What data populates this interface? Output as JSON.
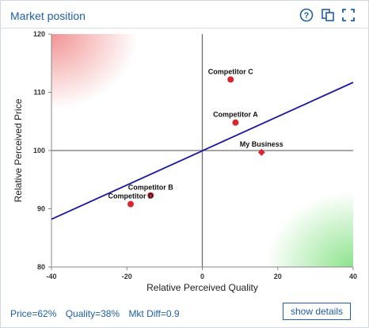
{
  "header": {
    "title": "Market position"
  },
  "icons": {
    "help": "help-icon",
    "copy": "copy-icon",
    "expand": "expand-icon"
  },
  "chart_data": {
    "type": "scatter",
    "title": "",
    "xlabel": "Relative Perceived Quality",
    "ylabel": "Relative Perceived Price",
    "xlim": [
      -40,
      40
    ],
    "ylim": [
      80,
      120
    ],
    "xticks": [
      -40,
      -20,
      0,
      20,
      40
    ],
    "yticks": [
      80,
      90,
      100,
      110,
      120
    ],
    "grid": false,
    "crosshair": {
      "x": 0,
      "y": 100
    },
    "value_line": {
      "x": [
        -40,
        40
      ],
      "y": [
        88.2,
        111.7
      ],
      "color": "#1a1aa0"
    },
    "corner_shading": {
      "top_left": "#f08080",
      "bottom_right": "#7fe07f"
    },
    "points": [
      {
        "name": "Competitor C",
        "x": 7.5,
        "y": 112.2,
        "color": "#d9262e",
        "marker": "circle"
      },
      {
        "name": "Competitor A",
        "x": 8.8,
        "y": 104.8,
        "color": "#d9262e",
        "marker": "circle"
      },
      {
        "name": "My Business",
        "x": 15.7,
        "y": 99.7,
        "color": "#d9262e",
        "marker": "diamond"
      },
      {
        "name": "Competitor B",
        "x": -13.7,
        "y": 92.3,
        "color": "#d9262e",
        "marker": "circle"
      },
      {
        "name": "Competitor D",
        "x": -19.0,
        "y": 90.8,
        "color": "#d9262e",
        "marker": "circle"
      }
    ]
  },
  "footer": {
    "price": "Price=62%",
    "quality": "Quality=38%",
    "mkt_diff": "Mkt Diff=0.9",
    "details_button": "show details"
  }
}
